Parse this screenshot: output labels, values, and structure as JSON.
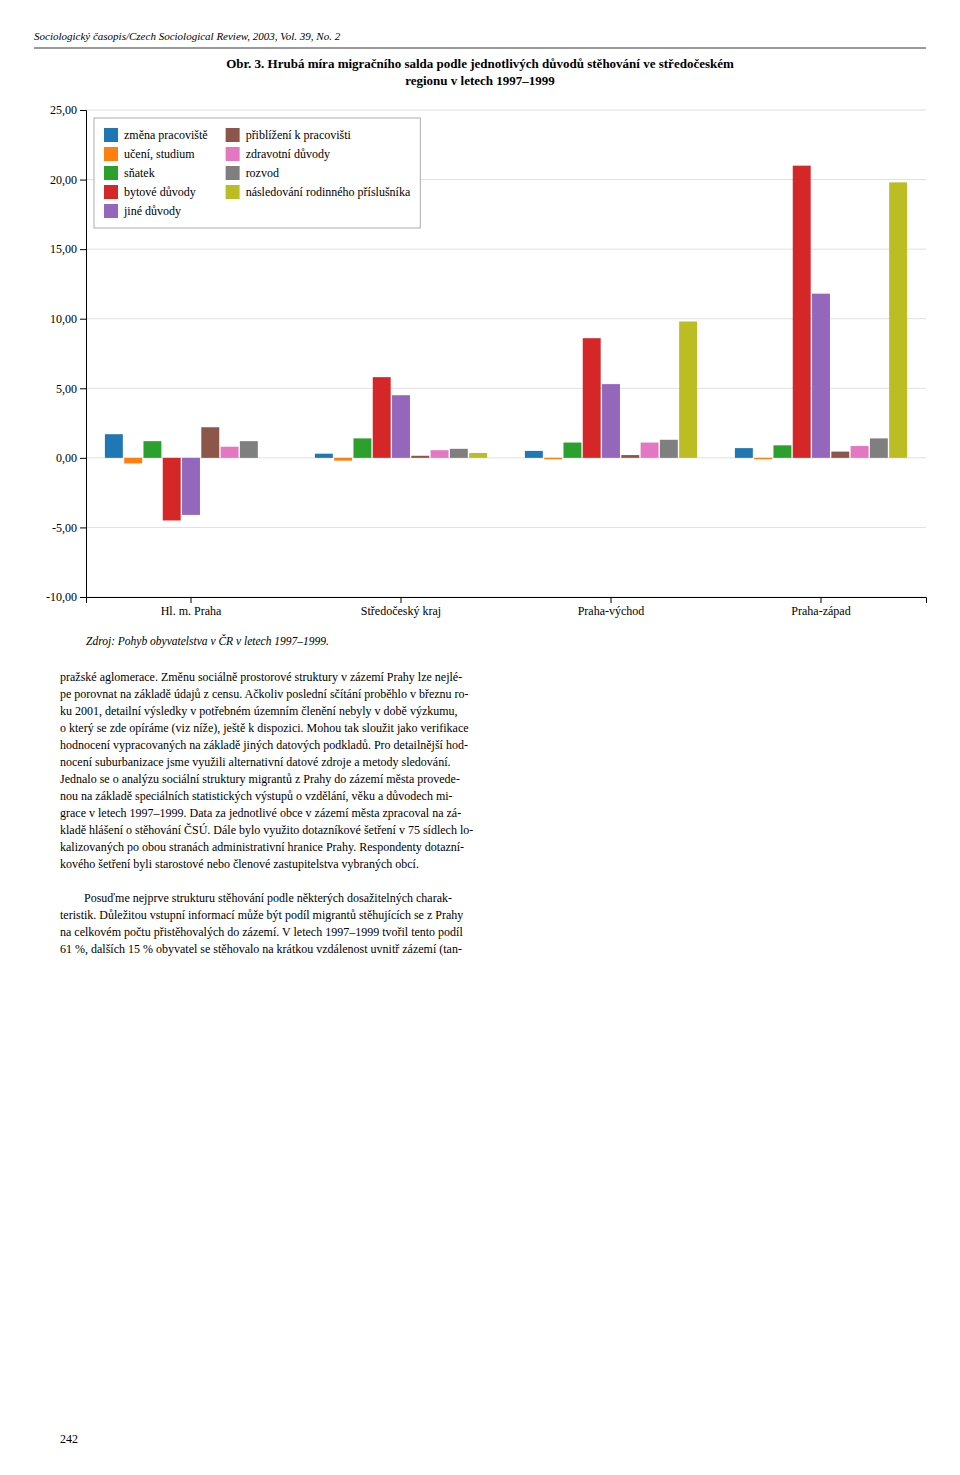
{
  "header": "Sociologický časopis/Czech Sociological Review, 2003, Vol. 39, No. 2",
  "chart_data": {
    "type": "bar",
    "title": [
      "Obr. 3. Hrubá míra migračního salda podle jednotlivých důvodů stěhování ve středočeském",
      "regionu v letech 1997–1999"
    ],
    "categories": [
      "Hl. m. Praha",
      "Středočeský kraj",
      "Praha-východ",
      "Praha-západ"
    ],
    "series": [
      {
        "name": "změna pracoviště",
        "values": [
          1.7,
          0.3,
          0.5,
          0.7
        ]
      },
      {
        "name": "učení, studium",
        "values": [
          -0.4,
          -0.2,
          -0.1,
          -0.1
        ]
      },
      {
        "name": "sňatek",
        "values": [
          1.2,
          1.4,
          1.1,
          0.9
        ]
      },
      {
        "name": "bytové důvody",
        "values": [
          -4.5,
          5.8,
          8.6,
          21.0
        ]
      },
      {
        "name": "jiné důvody",
        "values": [
          -4.1,
          4.5,
          5.3,
          11.8
        ]
      },
      {
        "name": "přiblížení k pracovišti",
        "values": [
          2.2,
          0.15,
          0.2,
          0.45
        ]
      },
      {
        "name": "zdravotní důvody",
        "values": [
          0.8,
          0.55,
          1.1,
          0.85
        ]
      },
      {
        "name": "rozvod",
        "values": [
          1.2,
          0.65,
          1.3,
          1.4
        ]
      },
      {
        "name": "následování rodinného příslušníka",
        "values": [
          0.0,
          0.35,
          9.8,
          19.8
        ]
      }
    ],
    "ylim": [
      -10.0,
      25.0
    ],
    "yticks": [
      {
        "value": -10.0,
        "label": "-10,00"
      },
      {
        "value": -5.0,
        "label": "-5,00"
      },
      {
        "value": 0.0,
        "label": "0,00"
      },
      {
        "value": 5.0,
        "label": "5,00"
      },
      {
        "value": 10.0,
        "label": "10,00"
      },
      {
        "value": 15.0,
        "label": "15,00"
      },
      {
        "value": 20.0,
        "label": "20,00"
      },
      {
        "value": 25.0,
        "label": "25,00"
      }
    ],
    "grid": true,
    "legend": "upper left"
  },
  "source": "Zdroj: Pohyb obyvatelstva v ČR v letech 1997–1999.",
  "body": [
    [
      "pražské aglomerace. Změnu sociálně prostorové struktury v zázemí Prahy lze nejlé-",
      "pe porovnat na základě údajů z censu. Ačkoliv poslední sčítání proběhlo v březnu ro-",
      "ku 2001, detailní výsledky v potřebném územním členění nebyly v době výzkumu,",
      "o který se zde opíráme (viz níže), ještě k dispozici. Mohou tak sloužit jako verifikace",
      "hodnocení vypracovaných na základě jiných datových podkladů. Pro detailnější hod-",
      "nocení suburbanizace jsme využili alternativní datové zdroje a metody sledování.",
      "Jednalo se o analýzu sociální struktury migrantů z Prahy do zázemí města provede-",
      "nou na základě speciálních statistických výstupů o vzdělání, věku a důvodech mi-",
      "grace v letech 1997–1999. Data za jednotlivé obce v zázemí města zpracoval na zá-",
      "kladě hlášení o stěhování ČSÚ. Dále bylo využito dotazníkové šetření v 75 sídlech lo-",
      "kalizovaných po obou stranách administrativní hranice Prahy. Respondenty dotazní-",
      "kového šetření byli starostové nebo členové zastupitelstva vybraných obcí."
    ],
    [
      "Posuďme nejprve strukturu stěhování podle některých dosažitelných charak-",
      "teristik. Důležitou vstupní informací může být podíl migrantů stěhujících se z Prahy",
      "na celkovém počtu přistěhovalých do zázemí. V letech 1997–1999 tvořil tento podíl",
      "61 %, dalších 15 % obyvatel se stěhovalo na krátkou vzdálenost uvnitř zázemí (tan-"
    ]
  ],
  "page_number": "242"
}
